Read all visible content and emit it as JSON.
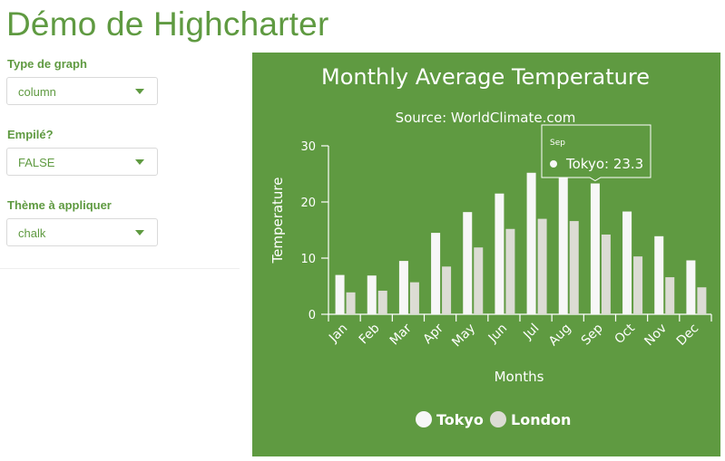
{
  "page": {
    "title": "Démo de Highcharter"
  },
  "controls": {
    "graph_type": {
      "label": "Type de graph",
      "value": "column"
    },
    "stacked": {
      "label": "Empilé?",
      "value": "FALSE"
    },
    "theme": {
      "label": "Thème à appliquer",
      "value": "chalk"
    }
  },
  "colors": {
    "accent": "#5f9a41",
    "chalkboard": "#5f9a41",
    "tokyo": "#f7f7f7",
    "london": "#dcdcd4"
  },
  "chart_data": {
    "type": "bar",
    "title": "Monthly Average Temperature",
    "subtitle": "Source: WorldClimate.com",
    "xlabel": "Months",
    "ylabel": "Temperature",
    "ylim": [
      0,
      30
    ],
    "yticks": [
      0,
      10,
      20,
      30
    ],
    "categories": [
      "Jan",
      "Feb",
      "Mar",
      "Apr",
      "May",
      "Jun",
      "Jul",
      "Aug",
      "Sep",
      "Oct",
      "Nov",
      "Dec"
    ],
    "series": [
      {
        "name": "Tokyo",
        "values": [
          7.0,
          6.9,
          9.5,
          14.5,
          18.2,
          21.5,
          25.2,
          26.5,
          23.3,
          18.3,
          13.9,
          9.6
        ]
      },
      {
        "name": "London",
        "values": [
          3.9,
          4.2,
          5.7,
          8.5,
          11.9,
          15.2,
          17.0,
          16.6,
          14.2,
          10.3,
          6.6,
          4.8
        ]
      }
    ],
    "legend_position": "bottom",
    "grid": false,
    "tooltip": {
      "category": "Sep",
      "series": "Tokyo",
      "text": "Tokyo: 23.3"
    }
  }
}
